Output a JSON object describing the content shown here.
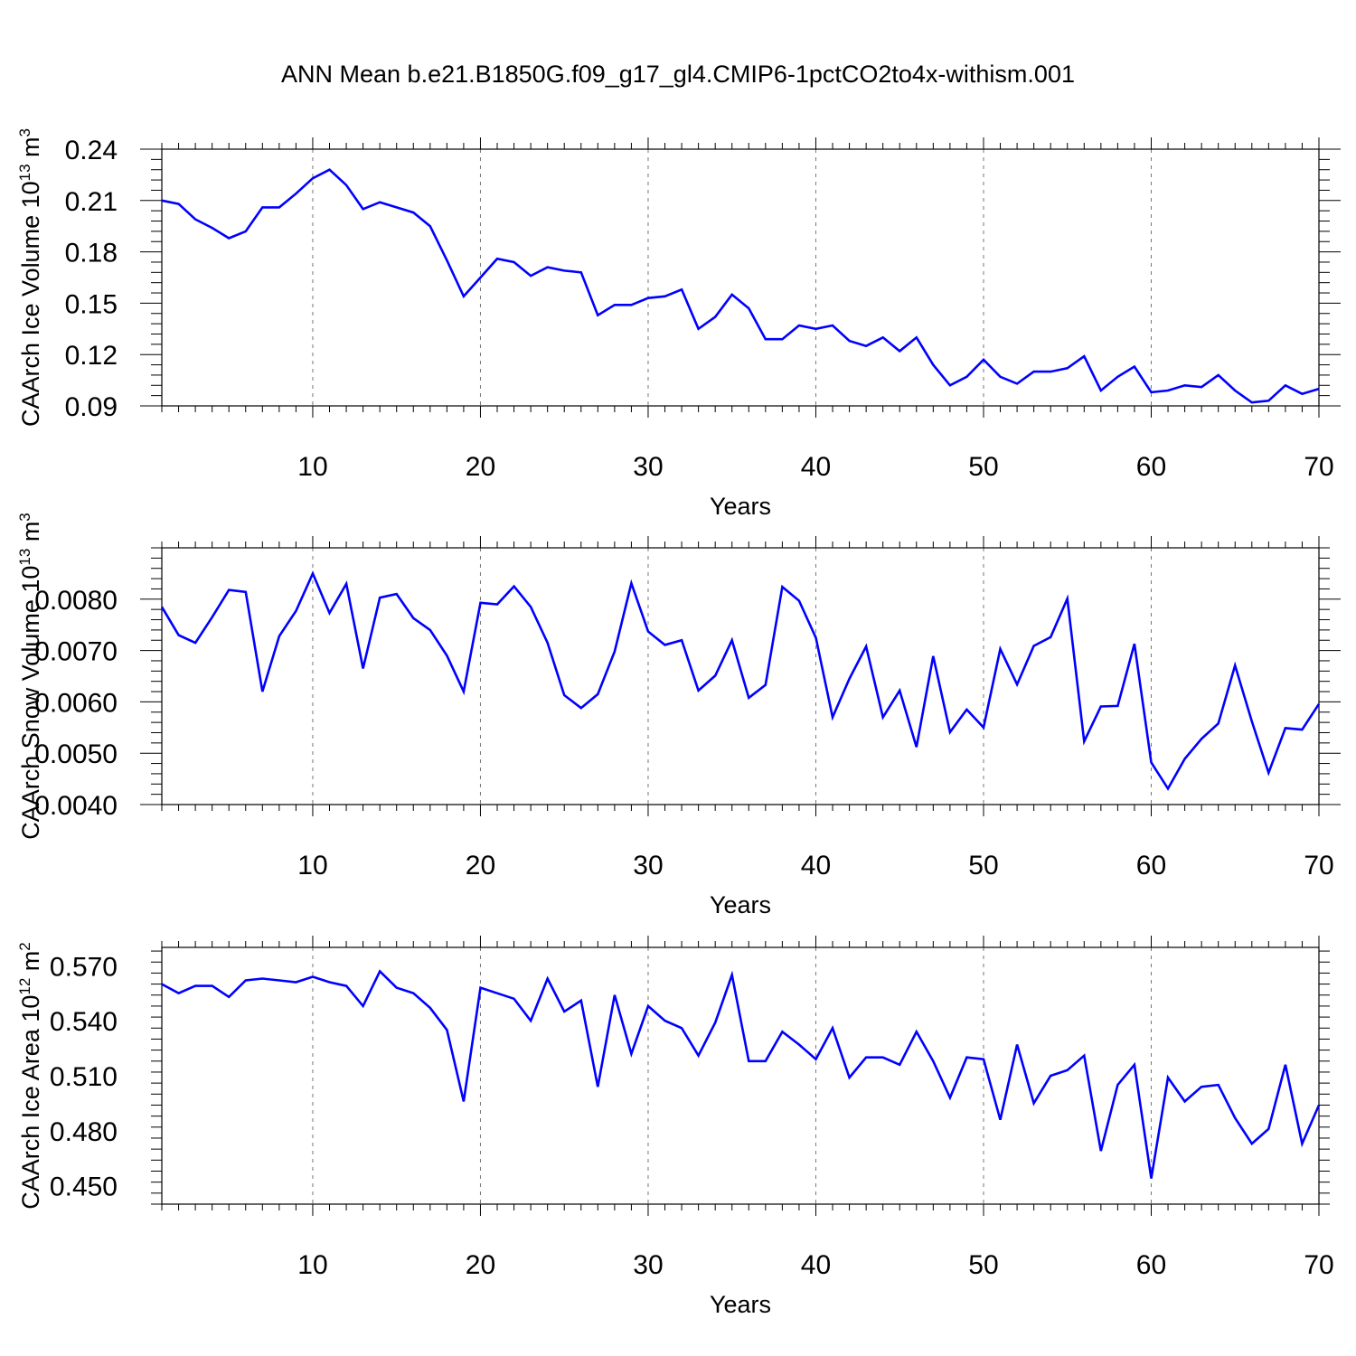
{
  "title": "ANN Mean b.e21.B1850G.f09_g17_gl4.CMIP6-1pctCO2to4x-withism.001",
  "colors": {
    "line": "#0000ff",
    "axes": "#000000",
    "grid": "#777777",
    "background": "#ffffff"
  },
  "chart_data": [
    {
      "type": "line",
      "title": "",
      "xlabel": "Years",
      "ylabel": "CAArch Ice Volume 10",
      "ylabel_exp": "13",
      "ylabel_unit": " m",
      "ylabel_unit_exp": "3",
      "xlim": [
        1,
        70
      ],
      "ylim": [
        0.09,
        0.24
      ],
      "xticks": [
        10,
        20,
        30,
        40,
        50,
        60,
        70
      ],
      "xtick_labels": [
        "10",
        "20",
        "30",
        "40",
        "50",
        "60",
        "70"
      ],
      "yticks": [
        0.09,
        0.12,
        0.15,
        0.18,
        0.21,
        0.24
      ],
      "ytick_labels": [
        "0.09",
        "0.12",
        "0.15",
        "0.18",
        "0.21",
        "0.24"
      ],
      "grid": "vertical dashed at major x ticks",
      "series": [
        {
          "color": "#0000ff",
          "x": [
            1,
            2,
            3,
            4,
            5,
            6,
            7,
            8,
            9,
            10,
            11,
            12,
            13,
            14,
            15,
            16,
            17,
            18,
            19,
            20,
            21,
            22,
            23,
            24,
            25,
            26,
            27,
            28,
            29,
            30,
            31,
            32,
            33,
            34,
            35,
            36,
            37,
            38,
            39,
            40,
            41,
            42,
            43,
            44,
            45,
            46,
            47,
            48,
            49,
            50,
            51,
            52,
            53,
            54,
            55,
            56,
            57,
            58,
            59,
            60,
            61,
            62,
            63,
            64,
            65,
            66,
            67,
            68,
            69,
            70
          ],
          "values": [
            0.21,
            0.208,
            0.199,
            0.194,
            0.188,
            0.192,
            0.206,
            0.206,
            0.214,
            0.223,
            0.228,
            0.219,
            0.205,
            0.209,
            0.206,
            0.203,
            0.195,
            0.175,
            0.154,
            0.165,
            0.176,
            0.174,
            0.166,
            0.171,
            0.169,
            0.168,
            0.143,
            0.149,
            0.149,
            0.153,
            0.154,
            0.158,
            0.135,
            0.142,
            0.155,
            0.147,
            0.129,
            0.129,
            0.137,
            0.135,
            0.137,
            0.128,
            0.125,
            0.13,
            0.122,
            0.13,
            0.114,
            0.102,
            0.107,
            0.117,
            0.107,
            0.103,
            0.11,
            0.11,
            0.112,
            0.119,
            0.099,
            0.107,
            0.113,
            0.098,
            0.099,
            0.102,
            0.101,
            0.108,
            0.099,
            0.092,
            0.093,
            0.102,
            0.097,
            0.1
          ]
        }
      ]
    },
    {
      "type": "line",
      "title": "",
      "xlabel": "Years",
      "ylabel": "CAArch Snow Volume 10",
      "ylabel_exp": "13",
      "ylabel_unit": " m",
      "ylabel_unit_exp": "3",
      "xlim": [
        1,
        70
      ],
      "ylim": [
        0.004,
        0.009
      ],
      "xticks": [
        10,
        20,
        30,
        40,
        50,
        60,
        70
      ],
      "xtick_labels": [
        "10",
        "20",
        "30",
        "40",
        "50",
        "60",
        "70"
      ],
      "yticks": [
        0.004,
        0.005,
        0.006,
        0.007,
        0.008
      ],
      "ytick_labels": [
        "0.0040",
        "0.0050",
        "0.0060",
        "0.0070",
        "0.0080"
      ],
      "grid": "vertical dashed at major x ticks",
      "series": [
        {
          "color": "#0000ff",
          "x": [
            1,
            2,
            3,
            4,
            5,
            6,
            7,
            8,
            9,
            10,
            11,
            12,
            13,
            14,
            15,
            16,
            17,
            18,
            19,
            20,
            21,
            22,
            23,
            24,
            25,
            26,
            27,
            28,
            29,
            30,
            31,
            32,
            33,
            34,
            35,
            36,
            37,
            38,
            39,
            40,
            41,
            42,
            43,
            44,
            45,
            46,
            47,
            48,
            49,
            50,
            51,
            52,
            53,
            54,
            55,
            56,
            57,
            58,
            59,
            60,
            61,
            62,
            63,
            64,
            65,
            66,
            67,
            68,
            69,
            70
          ],
          "values": [
            0.00785,
            0.0073,
            0.00715,
            0.00765,
            0.00818,
            0.00814,
            0.0062,
            0.00728,
            0.00777,
            0.0085,
            0.00773,
            0.0083,
            0.00665,
            0.00803,
            0.0081,
            0.00763,
            0.0074,
            0.0069,
            0.0062,
            0.00793,
            0.0079,
            0.00825,
            0.00785,
            0.00715,
            0.00613,
            0.00588,
            0.00615,
            0.00698,
            0.00831,
            0.00737,
            0.00711,
            0.0072,
            0.00622,
            0.00651,
            0.0072,
            0.00608,
            0.00633,
            0.00824,
            0.00797,
            0.00725,
            0.0057,
            0.00645,
            0.00708,
            0.0057,
            0.00622,
            0.00512,
            0.00689,
            0.00541,
            0.00585,
            0.0055,
            0.00703,
            0.00634,
            0.00709,
            0.00726,
            0.00801,
            0.00523,
            0.00591,
            0.00592,
            0.00713,
            0.00482,
            0.00431,
            0.00489,
            0.00528,
            0.00558,
            0.00671,
            0.00562,
            0.00462,
            0.00549,
            0.00546,
            0.00596
          ]
        }
      ]
    },
    {
      "type": "line",
      "title": "",
      "xlabel": "Years",
      "ylabel": "CAArch Ice Area 10",
      "ylabel_exp": "12",
      "ylabel_unit": " m",
      "ylabel_unit_exp": "2",
      "xlim": [
        1,
        70
      ],
      "ylim": [
        0.44,
        0.58
      ],
      "xticks": [
        10,
        20,
        30,
        40,
        50,
        60,
        70
      ],
      "xtick_labels": [
        "10",
        "20",
        "30",
        "40",
        "50",
        "60",
        "70"
      ],
      "yticks": [
        0.45,
        0.48,
        0.51,
        0.54,
        0.57
      ],
      "ytick_labels": [
        "0.450",
        "0.480",
        "0.510",
        "0.540",
        "0.570"
      ],
      "grid": "vertical dashed at major x ticks",
      "series": [
        {
          "color": "#0000ff",
          "x": [
            1,
            2,
            3,
            4,
            5,
            6,
            7,
            8,
            9,
            10,
            11,
            12,
            13,
            14,
            15,
            16,
            17,
            18,
            19,
            20,
            21,
            22,
            23,
            24,
            25,
            26,
            27,
            28,
            29,
            30,
            31,
            32,
            33,
            34,
            35,
            36,
            37,
            38,
            39,
            40,
            41,
            42,
            43,
            44,
            45,
            46,
            47,
            48,
            49,
            50,
            51,
            52,
            53,
            54,
            55,
            56,
            57,
            58,
            59,
            60,
            61,
            62,
            63,
            64,
            65,
            66,
            67,
            68,
            69,
            70
          ],
          "values": [
            0.56,
            0.555,
            0.559,
            0.559,
            0.553,
            0.562,
            0.563,
            0.562,
            0.561,
            0.564,
            0.561,
            0.559,
            0.548,
            0.567,
            0.558,
            0.555,
            0.547,
            0.535,
            0.496,
            0.558,
            0.555,
            0.552,
            0.54,
            0.563,
            0.545,
            0.551,
            0.504,
            0.554,
            0.522,
            0.548,
            0.54,
            0.536,
            0.521,
            0.539,
            0.565,
            0.518,
            0.518,
            0.534,
            0.527,
            0.519,
            0.536,
            0.509,
            0.52,
            0.52,
            0.516,
            0.534,
            0.518,
            0.498,
            0.52,
            0.519,
            0.486,
            0.527,
            0.495,
            0.51,
            0.513,
            0.521,
            0.469,
            0.505,
            0.516,
            0.454,
            0.509,
            0.496,
            0.504,
            0.505,
            0.487,
            0.473,
            0.481,
            0.516,
            0.473,
            0.494
          ]
        }
      ]
    }
  ]
}
